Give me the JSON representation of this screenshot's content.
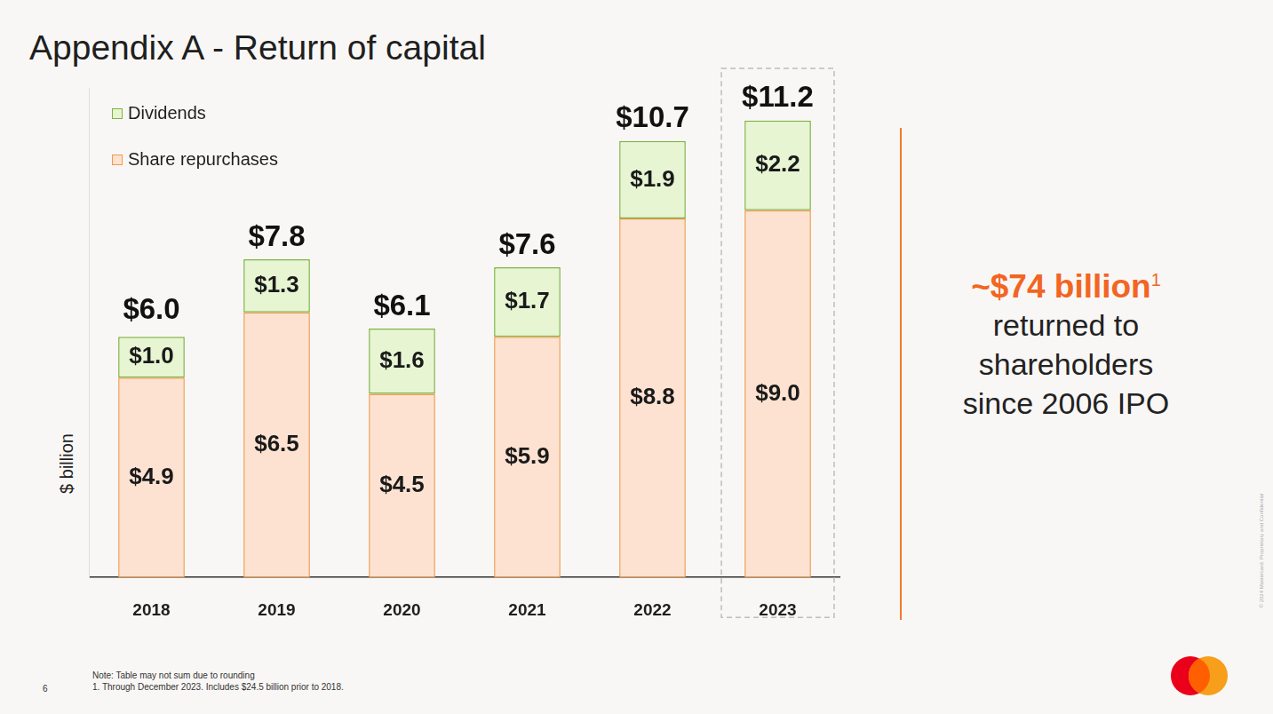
{
  "chart_data": {
    "type": "bar",
    "title": "Appendix A - Return of capital",
    "stacked": true,
    "data_labels": true,
    "tick_labels": "x",
    "legend": "upper left",
    "grid": false,
    "y_label": "$ billion",
    "categories": [
      "2018",
      "2019",
      "2020",
      "2021",
      "2022",
      "2023"
    ],
    "series": [
      {
        "name": "Dividends",
        "color": "#e7f5d3",
        "values": [
          1.0,
          1.3,
          1.6,
          1.7,
          1.9,
          2.2
        ],
        "value_labels": [
          "$1.0",
          "$1.3",
          "$1.6",
          "$1.7",
          "$1.9",
          "$2.2"
        ]
      },
      {
        "name": "Share repurchases",
        "color": "#fde2d2",
        "values": [
          4.9,
          6.5,
          4.5,
          5.9,
          8.8,
          9.0
        ],
        "value_labels": [
          "$4.9",
          "$6.5",
          "$4.5",
          "$5.9",
          "$8.8",
          "$9.0"
        ]
      }
    ],
    "totals": [
      6.0,
      7.8,
      6.1,
      7.6,
      10.7,
      11.2
    ],
    "total_labels": [
      "$6.0",
      "$7.8",
      "$6.1",
      "$7.6",
      "$10.7",
      "$11.2"
    ],
    "ylim": [
      0,
      12
    ]
  },
  "annotation": {
    "highlight": "~$74 billion",
    "footnote_mark": "1",
    "lines": [
      "returned to",
      "shareholders",
      "since 2006 IPO"
    ]
  },
  "notes": [
    "Note: Table may not sum due to rounding",
    "1. Through December 2023. Includes $24.5 billion prior to 2018."
  ],
  "page_number": "6",
  "copyright": "© 2024 Mastercard. Proprietary and Confidential"
}
